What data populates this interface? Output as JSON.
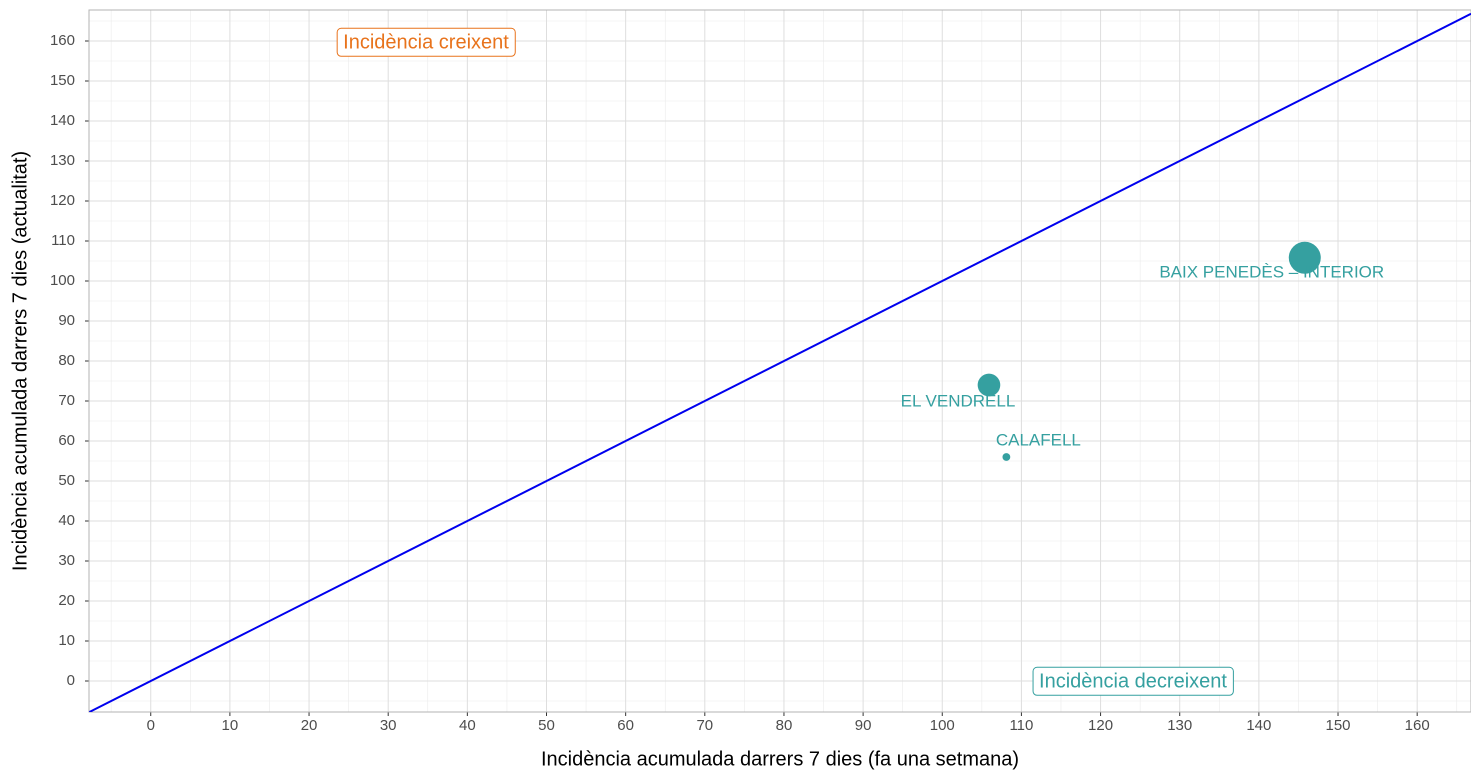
{
  "chart_data": {
    "type": "scatter",
    "x_label": "Incidència acumulada darrers 7 dies (fa una setmana)",
    "y_label": "Incidència acumulada darrers 7 dies (actualitat)",
    "xlim": [
      -7.8,
      166.8
    ],
    "ylim": [
      -7.75,
      167.75
    ],
    "xticks": [
      0,
      10,
      20,
      30,
      40,
      50,
      60,
      70,
      80,
      90,
      100,
      110,
      120,
      130,
      140,
      150,
      160
    ],
    "yticks": [
      0,
      10,
      20,
      30,
      40,
      50,
      60,
      70,
      80,
      90,
      100,
      110,
      120,
      130,
      140,
      150,
      160
    ],
    "grid": true,
    "series": [
      {
        "name": null,
        "color": "#35a0a0",
        "labels": [
          "BAIX PENEDÈS – INTERIOR",
          "EL VENDRELL",
          "CALAFELL"
        ],
        "x": [
          145.8,
          105.9,
          108.1
        ],
        "values": [
          105.8,
          74,
          56
        ],
        "sizes": [
          100,
          50,
          6
        ]
      }
    ],
    "identity_line_color": "#0000ee",
    "annotations": [
      {
        "text": "Incidència creixent",
        "color": "#e8731c"
      },
      {
        "text": "Incidència decreixent",
        "color": "#35a0a0"
      }
    ]
  }
}
